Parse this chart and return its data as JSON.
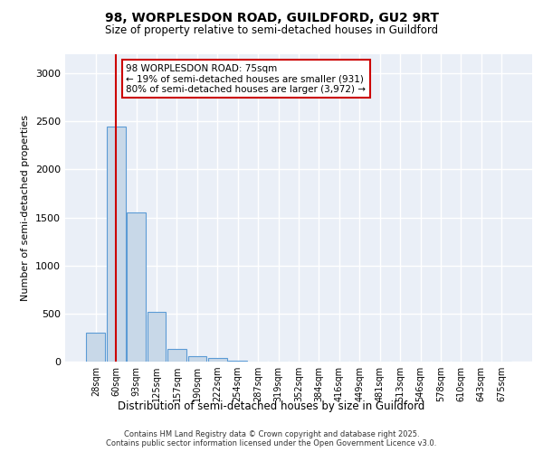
{
  "title_line1": "98, WORPLESDON ROAD, GUILDFORD, GU2 9RT",
  "title_line2": "Size of property relative to semi-detached houses in Guildford",
  "xlabel": "Distribution of semi-detached houses by size in Guildford",
  "ylabel": "Number of semi-detached properties",
  "bin_labels": [
    "28sqm",
    "60sqm",
    "93sqm",
    "125sqm",
    "157sqm",
    "190sqm",
    "222sqm",
    "254sqm",
    "287sqm",
    "319sqm",
    "352sqm",
    "384sqm",
    "416sqm",
    "449sqm",
    "481sqm",
    "513sqm",
    "546sqm",
    "578sqm",
    "610sqm",
    "643sqm",
    "675sqm"
  ],
  "bar_heights": [
    300,
    2450,
    1550,
    520,
    135,
    55,
    35,
    5,
    2,
    1,
    1,
    0,
    0,
    0,
    0,
    0,
    0,
    0,
    0,
    0,
    0
  ],
  "bar_color": "#c8d8e8",
  "bar_edge_color": "#5b9bd5",
  "bar_edge_width": 0.8,
  "red_line_x": 1.0,
  "annotation_text": "98 WORPLESDON ROAD: 75sqm\n← 19% of semi-detached houses are smaller (931)\n80% of semi-detached houses are larger (3,972) →",
  "annotation_box_color": "#ffffff",
  "annotation_box_edge": "#cc0000",
  "ylim": [
    0,
    3200
  ],
  "yticks": [
    0,
    500,
    1000,
    1500,
    2000,
    2500,
    3000
  ],
  "bg_color": "#eaeff7",
  "grid_color": "#ffffff",
  "footer_line1": "Contains HM Land Registry data © Crown copyright and database right 2025.",
  "footer_line2": "Contains public sector information licensed under the Open Government Licence v3.0."
}
